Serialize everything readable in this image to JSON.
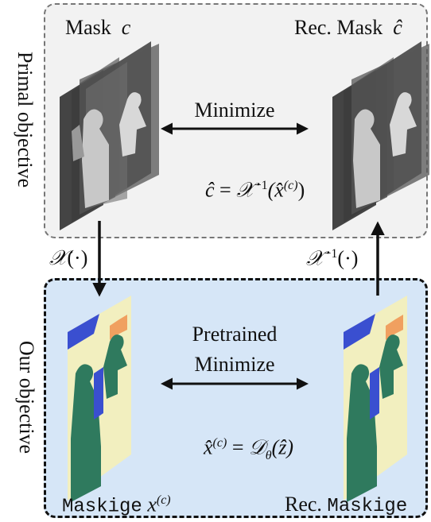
{
  "primal": {
    "side_label": "Primal objective",
    "mask_label": "Mask",
    "mask_symbol": "c",
    "rec_mask_label": "Rec. Mask",
    "rec_mask_symbol": "ĉ",
    "minimize_label": "Minimize",
    "eq_lhs": "ĉ",
    "eq_eq": "=",
    "eq_op": "𝒳",
    "eq_sup": "−1",
    "eq_arg": "(x̂",
    "eq_arg_sup": "(c)",
    "eq_close": ")"
  },
  "transforms": {
    "forward_op": "𝒳",
    "forward_arg": "(·)",
    "inverse_op": "𝒳",
    "inverse_sup": "−1",
    "inverse_arg": "(·)"
  },
  "ours": {
    "side_label": "Our objective",
    "pretrained_label": "Pretrained",
    "minimize_label": "Minimize",
    "maskige_word": "Maskige",
    "maskige_symbol": "x",
    "maskige_sup": "(c)",
    "rec_prefix": "Rec.",
    "rec_maskige_word": "Maskige",
    "eq_lhs": "x̂",
    "eq_lhs_sup": "(c)",
    "eq_eq": "=",
    "eq_op": "𝒟",
    "eq_op_sub": "θ",
    "eq_arg": "(ẑ)"
  },
  "colors": {
    "primal_bg": "#f2f2f2",
    "ours_bg": "#d6e6f7",
    "maskige_bg": "#f2efbf",
    "maskige_person": "#2f7a5e",
    "maskige_blue": "#3a4fd0",
    "maskige_orange": "#f0a060"
  }
}
